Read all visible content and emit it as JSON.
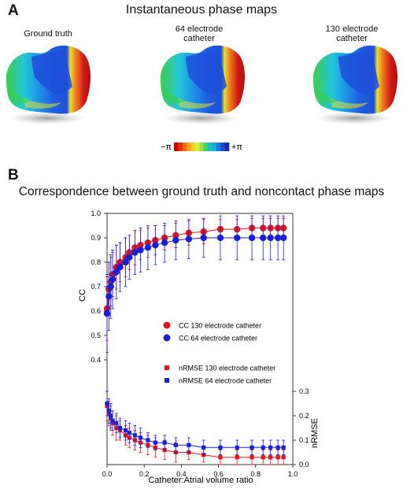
{
  "panel_a": {
    "letter": "A",
    "title": "Instantaneous phase maps",
    "maps": [
      {
        "label_lines": [
          "Ground truth"
        ]
      },
      {
        "label_lines": [
          "64 electrode",
          "catheter"
        ]
      },
      {
        "label_lines": [
          "130 electrode",
          "catheter"
        ]
      }
    ],
    "colorbar": {
      "min_label": "−π",
      "max_label": "+π",
      "colors": [
        "#c80000",
        "#e83010",
        "#f26a10",
        "#f6a020",
        "#f4d020",
        "#e0ee30",
        "#90e050",
        "#38d070",
        "#18c0b0",
        "#18a8e0",
        "#1878e8",
        "#1848d0",
        "#1828a8"
      ]
    },
    "map_colors": {
      "blue": "#1f5fe0",
      "cyan": "#22c7d8",
      "green": "#3ccf4a",
      "yellow": "#e8e030",
      "orange": "#f08020",
      "red": "#d01818"
    }
  },
  "panel_b": {
    "letter": "B",
    "title": "Correspondence between ground truth and noncontact phase maps"
  },
  "chart_data": {
    "type": "scatter",
    "xlabel": "Catheter:Atrial volume ratio",
    "ylabel_left": "CC",
    "ylabel_right": "nRMSE",
    "x_ticks": [
      "0.0",
      "0.2",
      "0.4",
      "0.6",
      "0.8",
      "1.0"
    ],
    "y_left_ticks": [
      "1.0",
      "0.9",
      "0.8",
      "0.7",
      "0.6",
      "0.5",
      "0.4"
    ],
    "y_right_ticks": [
      "0.3",
      "0.2",
      "0.1",
      "0.0"
    ],
    "xlim": [
      0,
      1.0
    ],
    "ylim_left": [
      0.4,
      1.0
    ],
    "ylim_right": [
      0.0,
      0.3
    ],
    "x": [
      0.0,
      0.01,
      0.02,
      0.03,
      0.05,
      0.07,
      0.1,
      0.12,
      0.15,
      0.18,
      0.22,
      0.26,
      0.31,
      0.37,
      0.44,
      0.52,
      0.61,
      0.7,
      0.78,
      0.84,
      0.88,
      0.92,
      0.95
    ],
    "series": [
      {
        "name": "CC  130 electrode catheter",
        "axis": "left",
        "marker": "circle",
        "color": "#e0141e",
        "values": [
          0.61,
          0.69,
          0.72,
          0.75,
          0.78,
          0.8,
          0.82,
          0.84,
          0.86,
          0.87,
          0.88,
          0.89,
          0.9,
          0.91,
          0.92,
          0.925,
          0.935,
          0.935,
          0.94,
          0.94,
          0.94,
          0.94,
          0.94
        ],
        "err": [
          0.13,
          0.11,
          0.1,
          0.09,
          0.09,
          0.08,
          0.08,
          0.07,
          0.07,
          0.06,
          0.06,
          0.06,
          0.05,
          0.05,
          0.05,
          0.05,
          0.04,
          0.04,
          0.04,
          0.04,
          0.04,
          0.04,
          0.04
        ]
      },
      {
        "name": "CC  64 electrode catheter",
        "axis": "left",
        "marker": "circle",
        "color": "#1a1fd6",
        "values": [
          0.59,
          0.66,
          0.7,
          0.73,
          0.76,
          0.78,
          0.8,
          0.82,
          0.84,
          0.85,
          0.86,
          0.87,
          0.88,
          0.89,
          0.895,
          0.9,
          0.9,
          0.9,
          0.9,
          0.9,
          0.9,
          0.9,
          0.9
        ],
        "err": [
          0.16,
          0.14,
          0.13,
          0.12,
          0.11,
          0.1,
          0.1,
          0.09,
          0.09,
          0.09,
          0.09,
          0.08,
          0.08,
          0.08,
          0.08,
          0.08,
          0.09,
          0.09,
          0.09,
          0.09,
          0.09,
          0.09,
          0.09
        ]
      },
      {
        "name": "nRMSE  130 electrode catheter",
        "axis": "right",
        "marker": "square",
        "color": "#e0141e",
        "values": [
          0.24,
          0.21,
          0.19,
          0.17,
          0.15,
          0.14,
          0.12,
          0.11,
          0.1,
          0.09,
          0.08,
          0.07,
          0.06,
          0.05,
          0.05,
          0.04,
          0.03,
          0.03,
          0.03,
          0.03,
          0.03,
          0.03,
          0.03
        ],
        "err": [
          0.06,
          0.05,
          0.05,
          0.05,
          0.05,
          0.04,
          0.04,
          0.04,
          0.04,
          0.04,
          0.04,
          0.04,
          0.04,
          0.04,
          0.03,
          0.03,
          0.03,
          0.03,
          0.03,
          0.03,
          0.03,
          0.03,
          0.03
        ]
      },
      {
        "name": "nRMSE  64 electrode catheter",
        "axis": "right",
        "marker": "square",
        "color": "#1a1fd6",
        "values": [
          0.25,
          0.22,
          0.2,
          0.18,
          0.17,
          0.15,
          0.14,
          0.13,
          0.12,
          0.11,
          0.1,
          0.09,
          0.09,
          0.08,
          0.08,
          0.07,
          0.07,
          0.07,
          0.07,
          0.07,
          0.07,
          0.07,
          0.07
        ],
        "err": [
          0.05,
          0.05,
          0.05,
          0.04,
          0.04,
          0.04,
          0.04,
          0.04,
          0.04,
          0.04,
          0.03,
          0.03,
          0.03,
          0.03,
          0.03,
          0.03,
          0.03,
          0.03,
          0.03,
          0.03,
          0.03,
          0.03,
          0.03
        ]
      }
    ],
    "legend_placement": "inside-center",
    "grid": false
  }
}
